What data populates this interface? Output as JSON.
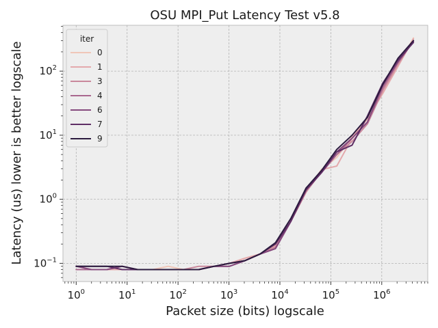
{
  "chart_data": {
    "type": "line",
    "title": "OSU MPI_Put Latency Test v5.8",
    "xlabel": "Packet size (bits) logscale",
    "ylabel": "Latency (us) lower is better logscale",
    "xscale": "log",
    "yscale": "log",
    "xlim": [
      0.55,
      8000000
    ],
    "ylim": [
      0.052,
      520
    ],
    "grid": true,
    "legend": {
      "title": "iter",
      "placement": "top-left"
    },
    "x_ticks": [
      {
        "base": "10",
        "exp": "0",
        "value": 1
      },
      {
        "base": "10",
        "exp": "1",
        "value": 10
      },
      {
        "base": "10",
        "exp": "2",
        "value": 100
      },
      {
        "base": "10",
        "exp": "3",
        "value": 1000
      },
      {
        "base": "10",
        "exp": "4",
        "value": 10000
      },
      {
        "base": "10",
        "exp": "5",
        "value": 100000
      },
      {
        "base": "10",
        "exp": "6",
        "value": 1000000
      }
    ],
    "y_ticks": [
      {
        "base": "10",
        "exp": "−1",
        "value": 0.1
      },
      {
        "base": "10",
        "exp": "0",
        "value": 1
      },
      {
        "base": "10",
        "exp": "1",
        "value": 10
      },
      {
        "base": "10",
        "exp": "2",
        "value": 100
      }
    ],
    "x": [
      1,
      2,
      4,
      8,
      16,
      32,
      64,
      128,
      256,
      512,
      1024,
      2048,
      4096,
      8192,
      16384,
      32768,
      65536,
      131072,
      262144,
      524288,
      1048576,
      2097152,
      4194304
    ],
    "series": [
      {
        "name": "0",
        "color": "#f0c6b8",
        "values": [
          0.08,
          0.08,
          0.08,
          0.08,
          0.08,
          0.08,
          0.09,
          0.08,
          0.08,
          0.09,
          0.1,
          0.12,
          0.14,
          0.19,
          0.45,
          1.3,
          2.9,
          4.5,
          9.5,
          18,
          45,
          120,
          330
        ]
      },
      {
        "name": "1",
        "color": "#e4a9ac",
        "values": [
          0.08,
          0.08,
          0.08,
          0.08,
          0.08,
          0.08,
          0.08,
          0.08,
          0.08,
          0.09,
          0.1,
          0.12,
          0.14,
          0.19,
          0.45,
          1.3,
          2.9,
          3.3,
          9,
          18,
          45,
          120,
          320
        ]
      },
      {
        "name": "3",
        "color": "#c9879b",
        "values": [
          0.09,
          0.08,
          0.08,
          0.09,
          0.08,
          0.08,
          0.08,
          0.08,
          0.09,
          0.09,
          0.1,
          0.11,
          0.14,
          0.18,
          0.45,
          1.3,
          2.7,
          5,
          8,
          15,
          50,
          130,
          300
        ]
      },
      {
        "name": "4",
        "color": "#a9678e",
        "values": [
          0.08,
          0.08,
          0.08,
          0.09,
          0.08,
          0.08,
          0.08,
          0.08,
          0.08,
          0.09,
          0.09,
          0.11,
          0.14,
          0.17,
          0.45,
          1.4,
          2.6,
          5,
          9,
          16,
          55,
          140,
          290
        ]
      },
      {
        "name": "6",
        "color": "#85497d",
        "values": [
          0.09,
          0.08,
          0.08,
          0.09,
          0.08,
          0.08,
          0.08,
          0.08,
          0.08,
          0.09,
          0.09,
          0.11,
          0.14,
          0.17,
          0.45,
          1.5,
          2.6,
          5.5,
          9,
          16,
          60,
          140,
          290
        ]
      },
      {
        "name": "7",
        "color": "#5e2e65",
        "values": [
          0.09,
          0.09,
          0.09,
          0.08,
          0.08,
          0.08,
          0.08,
          0.08,
          0.08,
          0.09,
          0.1,
          0.11,
          0.14,
          0.2,
          0.45,
          1.4,
          2.6,
          5.5,
          7,
          20,
          65,
          150,
          280
        ]
      },
      {
        "name": "9",
        "color": "#2b1a3e",
        "values": [
          0.09,
          0.09,
          0.09,
          0.09,
          0.08,
          0.08,
          0.08,
          0.08,
          0.08,
          0.09,
          0.1,
          0.11,
          0.14,
          0.21,
          0.5,
          1.5,
          2.8,
          6,
          10,
          19,
          62,
          160,
          300
        ]
      }
    ]
  }
}
